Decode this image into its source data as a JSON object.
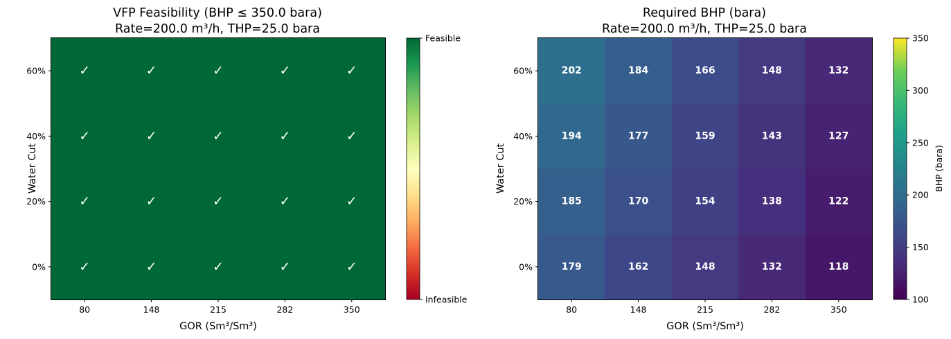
{
  "chart_data": [
    {
      "type": "heatmap",
      "title": [
        "VFP Feasibility (BHP ≤ 350.0 bara)",
        "Rate=200.0 m³/h, THP=25.0 bara"
      ],
      "xlabel": "GOR (Sm³/Sm³)",
      "ylabel": "Water Cut",
      "x_categories": [
        "80",
        "148",
        "215",
        "282",
        "350"
      ],
      "y_categories": [
        "0%",
        "20%",
        "40%",
        "60%"
      ],
      "values": [
        [
          1,
          1,
          1,
          1,
          1
        ],
        [
          1,
          1,
          1,
          1,
          1
        ],
        [
          1,
          1,
          1,
          1,
          1
        ],
        [
          1,
          1,
          1,
          1,
          1
        ]
      ],
      "cell_label": "✓",
      "colormap": "RdYlGn",
      "clim": [
        0,
        1
      ],
      "colorbar": {
        "ticks": [
          {
            "value": 1,
            "label": "Feasible"
          },
          {
            "value": 0,
            "label": "Infeasible"
          }
        ],
        "label": ""
      }
    },
    {
      "type": "heatmap",
      "title": [
        "Required BHP (bara)",
        "Rate=200.0 m³/h, THP=25.0 bara"
      ],
      "xlabel": "GOR (Sm³/Sm³)",
      "ylabel": "Water Cut",
      "x_categories": [
        "80",
        "148",
        "215",
        "282",
        "350"
      ],
      "y_categories": [
        "0%",
        "20%",
        "40%",
        "60%"
      ],
      "values": [
        [
          179,
          162,
          148,
          132,
          118
        ],
        [
          185,
          170,
          154,
          138,
          122
        ],
        [
          194,
          177,
          159,
          143,
          127
        ],
        [
          202,
          184,
          166,
          148,
          132
        ]
      ],
      "colormap": "viridis",
      "clim": [
        100,
        350
      ],
      "colorbar": {
        "ticks": [
          {
            "value": 100,
            "label": "100"
          },
          {
            "value": 150,
            "label": "150"
          },
          {
            "value": 200,
            "label": "200"
          },
          {
            "value": 250,
            "label": "250"
          },
          {
            "value": 300,
            "label": "300"
          },
          {
            "value": 350,
            "label": "350"
          }
        ],
        "label": "BHP (bara)"
      }
    }
  ]
}
